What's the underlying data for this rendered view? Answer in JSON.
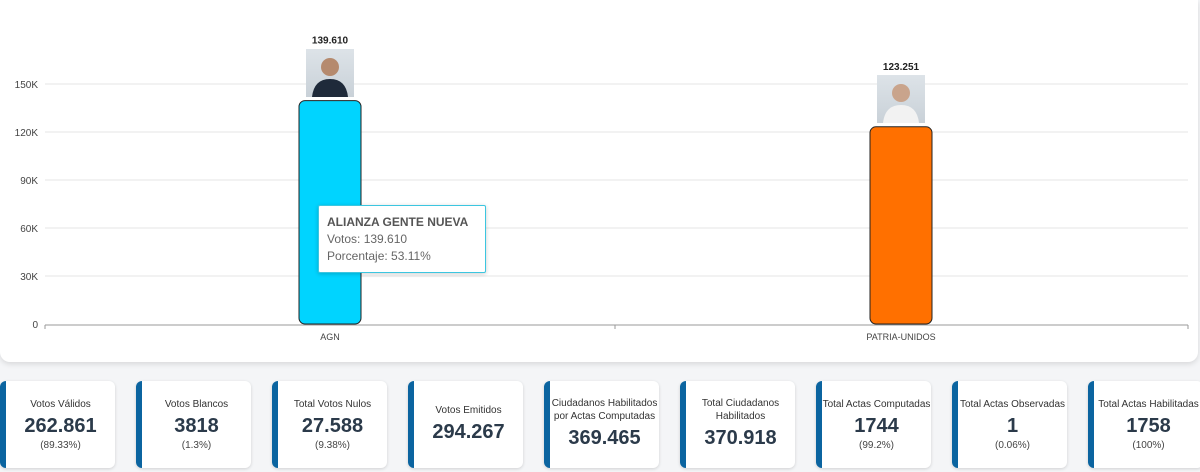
{
  "chart_data": {
    "type": "bar",
    "categories": [
      "AGN",
      "PATRIA-UNIDOS"
    ],
    "values": [
      139610,
      123251
    ],
    "data_labels": [
      "139.610",
      "123.251"
    ],
    "colors": [
      "#00d4ff",
      "#ff7000"
    ],
    "yticks": [
      0,
      30000,
      60000,
      90000,
      120000,
      150000
    ],
    "ytick_labels": [
      "0",
      "30K",
      "60K",
      "90K",
      "120K",
      "150K"
    ],
    "ylim": [
      0,
      150000
    ],
    "grid": true,
    "tooltip": {
      "title": "ALIANZA GENTE NUEVA",
      "votes": "Votos: 139.610",
      "percent": "Porcentaje: 53.11%"
    }
  },
  "cards": [
    {
      "label": "Votos Válidos",
      "value": "262.861",
      "pct": "(89.33%)"
    },
    {
      "label": "Votos Blancos",
      "value": "3818",
      "pct": "(1.3%)"
    },
    {
      "label": "Total Votos Nulos",
      "value": "27.588",
      "pct": "(9.38%)"
    },
    {
      "label": "Votos Emitidos",
      "value": "294.267"
    },
    {
      "label": "Ciudadanos Habilitados por Actas Computadas",
      "value": "369.465"
    },
    {
      "label": "Total Ciudadanos Habilitados",
      "value": "370.918"
    },
    {
      "label": "Total Actas Computadas",
      "value": "1744",
      "pct": "(99.2%)"
    },
    {
      "label": "Total Actas Observadas",
      "value": "1",
      "pct": "(0.06%)"
    },
    {
      "label": "Total Actas Habilitadas",
      "value": "1758",
      "pct": "(100%)"
    }
  ]
}
